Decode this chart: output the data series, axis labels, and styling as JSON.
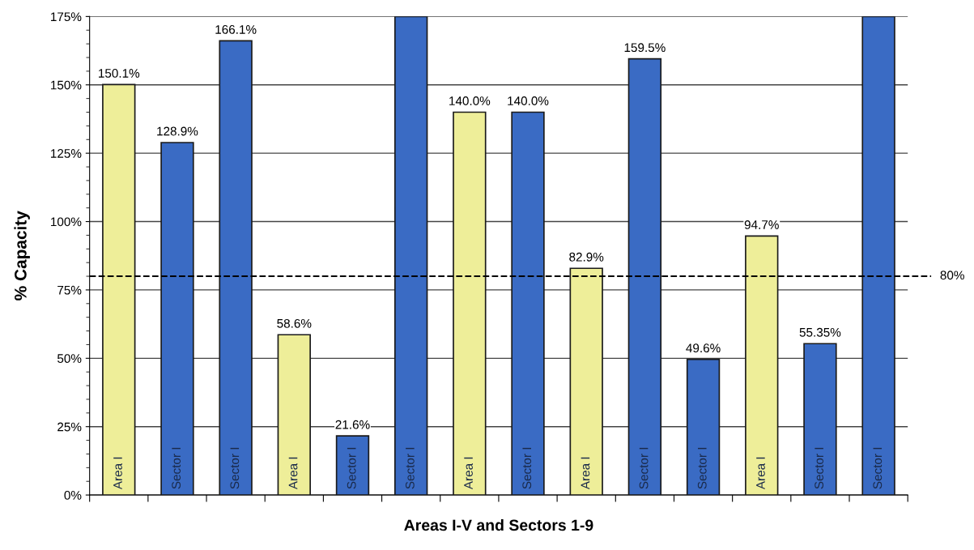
{
  "chart_data": {
    "type": "bar",
    "xlabel": "Areas I-V and Sectors 1-9",
    "ylabel": "% Capacity",
    "categories": [
      "Area I",
      "Sector I",
      "Sector I",
      "Area I",
      "Sector I",
      "Sector I",
      "Area I",
      "Sector I",
      "Area I",
      "Sector I",
      "Sector I",
      "Area I",
      "Sector I",
      "Sector I"
    ],
    "values": [
      150.1,
      128.9,
      166.1,
      58.6,
      21.6,
      175,
      140.0,
      140.0,
      82.9,
      159.5,
      49.6,
      94.7,
      55.35,
      175
    ],
    "value_labels": [
      "150.1%",
      "128.9%",
      "166.1%",
      "58.6%",
      "21.6%",
      null,
      "140.0%",
      "140.0%",
      "82.9%",
      "159.5%",
      "49.6%",
      "94.7%",
      "55.35%",
      null
    ],
    "colors": [
      "#eeee99",
      "#3a6bc4",
      "#3a6bc4",
      "#eeee99",
      "#3a6bc4",
      "#3a6bc4",
      "#eeee99",
      "#3a6bc4",
      "#eeee99",
      "#3a6bc4",
      "#3a6bc4",
      "#eeee99",
      "#3a6bc4",
      "#3a6bc4"
    ],
    "ylim": [
      0,
      175
    ],
    "yticks": [
      {
        "value": 0,
        "label": "0%"
      },
      {
        "value": 25,
        "label": "25%"
      },
      {
        "value": 50,
        "label": "50%"
      },
      {
        "value": 75,
        "label": "75%"
      },
      {
        "value": 100,
        "label": "100%"
      },
      {
        "value": 125,
        "label": "125%"
      },
      {
        "value": 150,
        "label": "150%"
      },
      {
        "value": 175,
        "label": "175%"
      }
    ],
    "grid": "y",
    "ref_lines": [
      {
        "axis": "y",
        "value": 80,
        "label": "80%",
        "color": "#000000",
        "line_style": "dashed"
      }
    ]
  }
}
